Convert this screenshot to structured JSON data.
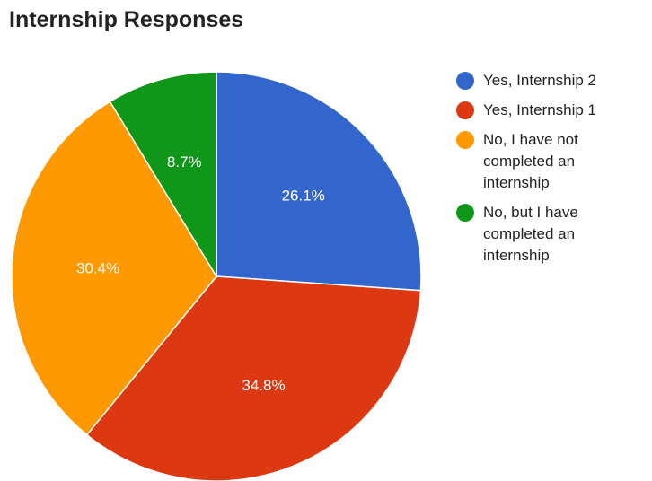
{
  "chart_data": {
    "type": "pie",
    "title": "Internship Responses",
    "slices": [
      {
        "label": "Yes, Internship 2",
        "value": 26.1,
        "display": "26.1%",
        "color": "#3366cc"
      },
      {
        "label": "Yes, Internship 1",
        "value": 34.8,
        "display": "34.8%",
        "color": "#dc3912"
      },
      {
        "label": "No, I have not completed an internship",
        "value": 30.4,
        "display": "30.4%",
        "color": "#ff9900"
      },
      {
        "label": "No, but I have completed an internship",
        "value": 8.7,
        "display": "8.7%",
        "color": "#109618"
      }
    ],
    "legend": {
      "position": "right",
      "items": [
        {
          "lines": [
            "Yes, Internship 2"
          ],
          "color": "#3366cc"
        },
        {
          "lines": [
            "Yes, Internship 1"
          ],
          "color": "#dc3912"
        },
        {
          "lines": [
            "No, I have not",
            "completed an",
            "internship"
          ],
          "color": "#ff9900"
        },
        {
          "lines": [
            "No, but I have",
            "completed an",
            "internship"
          ],
          "color": "#109618"
        }
      ]
    }
  }
}
